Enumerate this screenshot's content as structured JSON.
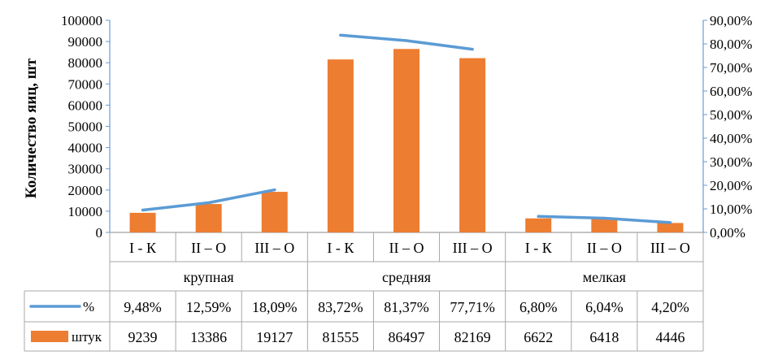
{
  "chart_data": {
    "type": "bar",
    "ylabel": "Количество яиц, шт",
    "groups": [
      "крупная",
      "средняя",
      "мелкая"
    ],
    "categories": [
      "I - К",
      "II – О",
      "III – О",
      "I - К",
      "II – О",
      "III – О",
      "I - К",
      "II – О",
      "III – О"
    ],
    "group_of_category": [
      0,
      0,
      0,
      1,
      1,
      1,
      2,
      2,
      2
    ],
    "series": [
      {
        "name": "%",
        "kind": "line",
        "axis": "right",
        "color": "#5b9bd5",
        "values": [
          9.48,
          12.59,
          18.09,
          83.72,
          81.37,
          77.71,
          6.8,
          6.04,
          4.2
        ],
        "labels": [
          "9,48%",
          "12,59%",
          "18,09%",
          "83,72%",
          "81,37%",
          "77,71%",
          "6,80%",
          "6,04%",
          "4,20%"
        ]
      },
      {
        "name": "штук",
        "kind": "bar",
        "axis": "left",
        "color": "#ed7d31",
        "values": [
          9239,
          13386,
          19127,
          81555,
          86497,
          82169,
          6622,
          6418,
          4446
        ],
        "labels": [
          "9239",
          "13386",
          "19127",
          "81555",
          "86497",
          "82169",
          "6622",
          "6418",
          "4446"
        ]
      }
    ],
    "ylim_left": [
      0,
      100000
    ],
    "yticks_left": [
      "0",
      "10000",
      "20000",
      "30000",
      "40000",
      "50000",
      "60000",
      "70000",
      "80000",
      "90000",
      "100000"
    ],
    "ylim_right": [
      0,
      90
    ],
    "yticks_right": [
      "0,00%",
      "10,00%",
      "20,00%",
      "30,00%",
      "40,00%",
      "50,00%",
      "60,00%",
      "70,00%",
      "80,00%",
      "90,00%"
    ],
    "grid": false,
    "legend": "data-table"
  }
}
